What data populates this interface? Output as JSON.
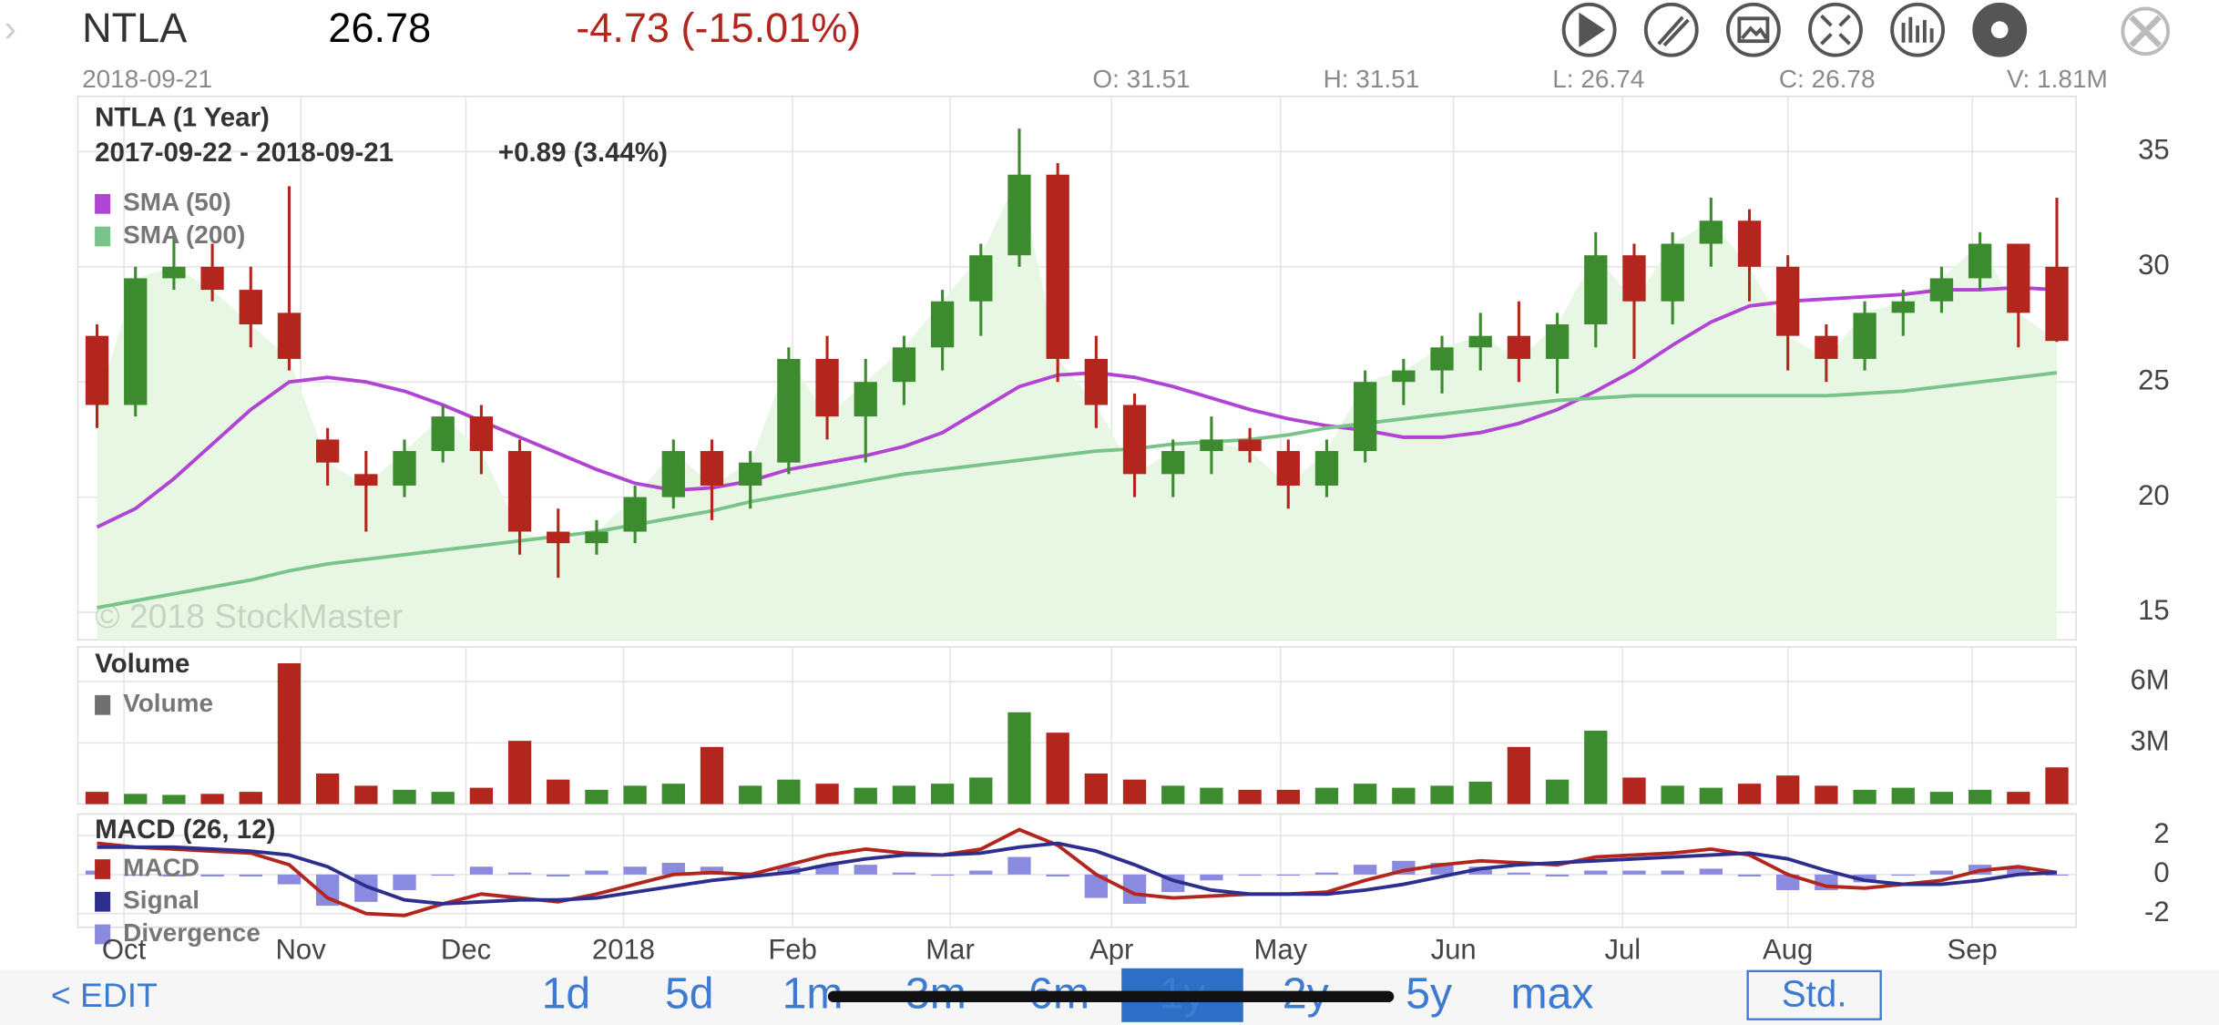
{
  "header": {
    "symbol": "NTLA",
    "price": "26.78",
    "change": "-4.73 (-15.01%)",
    "date": "2018-09-21",
    "open": "O: 31.51",
    "high": "H: 31.51",
    "low": "L: 26.74",
    "close": "C: 26.78",
    "volume": "V: 1.81M"
  },
  "toolbar": {
    "edit": "< EDIT",
    "ranges": [
      "1d",
      "5d",
      "1m",
      "3m",
      "6m",
      "1y",
      "2y",
      "5y",
      "max"
    ],
    "selected_range": "1y",
    "style": "Std."
  },
  "chart_data": [
    {
      "type": "candlestick",
      "title": "NTLA (1 Year)",
      "subtitle": "2017-09-22 - 2018-09-21",
      "annotation": "+0.89 (3.44%)",
      "watermark": "© 2018 StockMaster",
      "open": [
        27,
        24,
        29.5,
        30,
        29,
        28,
        22.5,
        21,
        20.5,
        22,
        23.5,
        22,
        18.5,
        18,
        18.5,
        20,
        22,
        20.5,
        21.5,
        26,
        23.5,
        25,
        26.5,
        28.5,
        30.5,
        34,
        26,
        24,
        21,
        22,
        22.5,
        22,
        20.5,
        22,
        25,
        25.5,
        26.5,
        27,
        26,
        27.5,
        30.5,
        28.5,
        31,
        32,
        30,
        27,
        26,
        28,
        28.5,
        29.5,
        31,
        30
      ],
      "high": [
        27.5,
        30,
        31.5,
        31,
        30,
        33.5,
        23,
        22,
        22.5,
        24,
        24,
        22.5,
        19.5,
        19,
        20.5,
        22.5,
        22.5,
        22,
        26.5,
        27,
        26,
        27,
        29,
        31,
        36,
        34.5,
        27,
        24.5,
        22.5,
        23.5,
        23,
        22.5,
        22.5,
        25.5,
        26,
        27,
        28,
        28.5,
        28,
        31.5,
        31,
        31.5,
        33,
        32.5,
        30.5,
        27.5,
        28.5,
        29,
        30,
        31.5,
        31,
        33
      ],
      "low": [
        23,
        23.5,
        29,
        28.5,
        26.5,
        25.5,
        20.5,
        18.5,
        20,
        21.5,
        21,
        17.5,
        16.5,
        17.5,
        18,
        19.5,
        19,
        19.5,
        21,
        22.5,
        21.5,
        24,
        25.5,
        27,
        30,
        25,
        23,
        20,
        20,
        21,
        21.5,
        19.5,
        20,
        21.5,
        24,
        24.5,
        25.5,
        25,
        24.5,
        26.5,
        26,
        27.5,
        30,
        28.5,
        25.5,
        25,
        25.5,
        27,
        28,
        29,
        26.5,
        26.74
      ],
      "close": [
        24,
        29.5,
        30,
        29,
        27.5,
        26,
        21.5,
        20.5,
        22,
        23.5,
        22,
        18.5,
        18,
        18.5,
        20,
        22,
        20.5,
        21.5,
        26,
        23.5,
        25,
        26.5,
        28.5,
        30.5,
        34,
        26,
        24,
        21,
        22,
        22.5,
        22,
        20.5,
        22,
        25,
        25.5,
        26.5,
        27,
        26,
        27.5,
        30.5,
        28.5,
        31,
        32,
        30,
        27,
        26,
        28,
        28.5,
        29.5,
        31,
        28,
        26.78
      ],
      "up_color": "#3d8b2f",
      "down_color": "#b3261e",
      "area_color": "#e7f7e4",
      "series": [
        {
          "name": "SMA (50)",
          "color": "#b144d4",
          "values": [
            18.7,
            19.5,
            20.8,
            22.3,
            23.8,
            25.0,
            25.2,
            25.0,
            24.6,
            24.0,
            23.3,
            22.6,
            21.9,
            21.2,
            20.6,
            20.3,
            20.4,
            20.7,
            21.2,
            21.5,
            21.8,
            22.2,
            22.8,
            23.8,
            24.8,
            25.3,
            25.4,
            25.2,
            24.8,
            24.3,
            23.8,
            23.4,
            23.1,
            22.9,
            22.6,
            22.6,
            22.8,
            23.2,
            23.8,
            24.6,
            25.5,
            26.6,
            27.6,
            28.3,
            28.5,
            28.6,
            28.7,
            28.8,
            29.0,
            29.0,
            29.1,
            29.0
          ]
        },
        {
          "name": "SMA (200)",
          "color": "#79c48a",
          "values": [
            15.2,
            15.5,
            15.8,
            16.1,
            16.4,
            16.8,
            17.1,
            17.3,
            17.5,
            17.7,
            17.9,
            18.1,
            18.3,
            18.5,
            18.8,
            19.1,
            19.4,
            19.8,
            20.1,
            20.4,
            20.7,
            21.0,
            21.2,
            21.4,
            21.6,
            21.8,
            22.0,
            22.1,
            22.3,
            22.4,
            22.5,
            22.7,
            23.0,
            23.2,
            23.4,
            23.6,
            23.8,
            24.0,
            24.2,
            24.3,
            24.4,
            24.4,
            24.4,
            24.4,
            24.4,
            24.4,
            24.5,
            24.6,
            24.8,
            25.0,
            25.2,
            25.4
          ]
        }
      ],
      "xlim": [
        -0.5,
        51.5
      ],
      "ylim": [
        13.8,
        37.4
      ],
      "yticks": [
        15,
        20,
        25,
        30,
        35
      ],
      "grid": true
    },
    {
      "type": "bar",
      "title": "Volume",
      "series": [
        {
          "name": "Volume",
          "color": "#707070",
          "values": [
            600000,
            500000,
            450000,
            500000,
            600000,
            6900000,
            1500000,
            900000,
            700000,
            600000,
            800000,
            3100000,
            1200000,
            700000,
            900000,
            1000000,
            2800000,
            900000,
            1200000,
            1000000,
            800000,
            900000,
            1000000,
            1300000,
            4500000,
            3500000,
            1500000,
            1200000,
            900000,
            800000,
            700000,
            700000,
            800000,
            1000000,
            800000,
            900000,
            1100000,
            2800000,
            1200000,
            3600000,
            1300000,
            900000,
            800000,
            1000000,
            1400000,
            900000,
            700000,
            800000,
            600000,
            700000,
            600000,
            1800000
          ]
        }
      ],
      "xlim": [
        -0.5,
        51.5
      ],
      "ylim": [
        0,
        7700000
      ],
      "yticks": [
        {
          "value": 3000000,
          "label": "3M"
        },
        {
          "value": 6000000,
          "label": "6M"
        }
      ],
      "grid": true
    },
    {
      "type": "line",
      "title": "MACD (26, 12)",
      "series": [
        {
          "name": "MACD",
          "color": "#b3261e",
          "values": [
            1.6,
            1.4,
            1.3,
            1.2,
            1.1,
            0.5,
            -1.2,
            -2.0,
            -2.1,
            -1.5,
            -1.0,
            -1.2,
            -1.4,
            -1.0,
            -0.5,
            0.0,
            0.1,
            0.0,
            0.5,
            1.0,
            1.3,
            1.1,
            1.0,
            1.3,
            2.3,
            1.5,
            0.0,
            -1.0,
            -1.2,
            -1.1,
            -1.0,
            -1.0,
            -0.9,
            -0.3,
            0.2,
            0.5,
            0.7,
            0.6,
            0.5,
            0.9,
            1.0,
            1.1,
            1.3,
            1.0,
            0.0,
            -0.6,
            -0.7,
            -0.5,
            -0.3,
            0.2,
            0.4,
            0.1
          ]
        },
        {
          "name": "Signal",
          "color": "#2e2e8f",
          "values": [
            1.4,
            1.4,
            1.4,
            1.3,
            1.2,
            1.0,
            0.4,
            -0.6,
            -1.3,
            -1.5,
            -1.4,
            -1.3,
            -1.3,
            -1.2,
            -0.9,
            -0.6,
            -0.3,
            -0.1,
            0.1,
            0.5,
            0.8,
            1.0,
            1.0,
            1.1,
            1.4,
            1.6,
            1.2,
            0.5,
            -0.3,
            -0.8,
            -1.0,
            -1.0,
            -1.0,
            -0.8,
            -0.5,
            -0.1,
            0.3,
            0.5,
            0.6,
            0.7,
            0.8,
            0.9,
            1.0,
            1.1,
            0.8,
            0.2,
            -0.3,
            -0.5,
            -0.5,
            -0.3,
            0.0,
            0.1
          ]
        },
        {
          "name": "Divergence",
          "color": "#8a8ae0",
          "style": "bar",
          "values": [
            0.2,
            0.0,
            -0.1,
            -0.1,
            -0.1,
            -0.5,
            -1.6,
            -1.4,
            -0.8,
            0.0,
            0.4,
            0.1,
            -0.1,
            0.2,
            0.4,
            0.6,
            0.4,
            0.1,
            0.4,
            0.5,
            0.5,
            0.1,
            0.0,
            0.2,
            0.9,
            -0.1,
            -1.2,
            -1.5,
            -0.9,
            -0.3,
            0.0,
            0.0,
            0.1,
            0.5,
            0.7,
            0.6,
            0.4,
            0.1,
            -0.1,
            0.2,
            0.2,
            0.2,
            0.3,
            -0.1,
            -0.8,
            -0.8,
            -0.4,
            0.0,
            0.2,
            0.5,
            0.4,
            0.0
          ]
        }
      ],
      "xlim": [
        -0.5,
        51.5
      ],
      "ylim": [
        -2.7,
        3.1
      ],
      "yticks": [
        -2,
        0,
        2
      ],
      "xticks": [
        {
          "value": 0.7,
          "label": "Oct"
        },
        {
          "value": 5.3,
          "label": "Nov"
        },
        {
          "value": 9.6,
          "label": "Dec"
        },
        {
          "value": 13.7,
          "label": "2018"
        },
        {
          "value": 18.1,
          "label": "Feb"
        },
        {
          "value": 22.2,
          "label": "Mar"
        },
        {
          "value": 26.4,
          "label": "Apr"
        },
        {
          "value": 30.8,
          "label": "May"
        },
        {
          "value": 35.3,
          "label": "Jun"
        },
        {
          "value": 39.7,
          "label": "Jul"
        },
        {
          "value": 44.0,
          "label": "Aug"
        },
        {
          "value": 48.8,
          "label": "Sep"
        }
      ],
      "grid": true
    }
  ]
}
